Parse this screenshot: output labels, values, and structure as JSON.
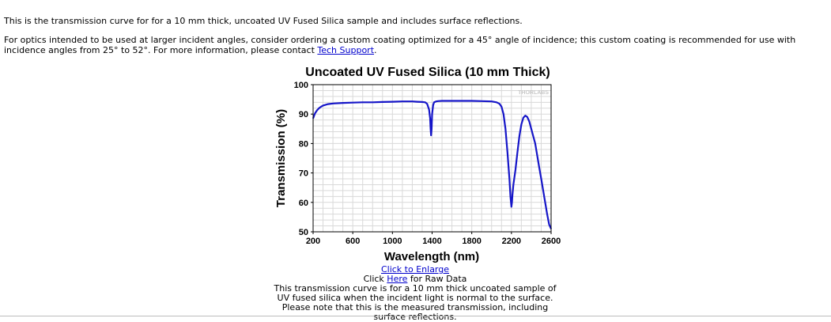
{
  "intro": {
    "line1": "This is the transmission curve for for a 10 mm thick, uncoated UV Fused Silica sample and includes surface reflections.",
    "line2_text": "For optics intended to be used at larger incident angles, consider ordering a custom coating optimized for a 45° angle of incidence; this custom coating is recommended for use with incidence angles from 25° to 52°. For more information, please contact ",
    "line2_link": "Tech Support",
    "line2_end": "."
  },
  "chart_data": {
    "type": "line",
    "title": "Uncoated UV Fused Silica (10 mm Thick)",
    "xlabel": "Wavelength (nm)",
    "ylabel": "Transmission (%)",
    "xlim": [
      200,
      2600
    ],
    "ylim": [
      50,
      100
    ],
    "xticks": [
      200,
      600,
      1000,
      1400,
      1800,
      2200,
      2600
    ],
    "yticks": [
      50,
      60,
      70,
      80,
      90,
      100
    ],
    "grid": true,
    "watermark": "THORLABS",
    "line_color": "#1515c8",
    "series": [
      {
        "x": [
          200,
          210,
          220,
          240,
          260,
          280,
          300,
          350,
          400,
          500,
          600,
          700,
          800,
          900,
          1000,
          1100,
          1200,
          1250,
          1300,
          1330,
          1350,
          1370,
          1380,
          1385,
          1390,
          1395,
          1400,
          1410,
          1420,
          1440,
          1460,
          1500,
          1600,
          1700,
          1800,
          1900,
          2000,
          2050,
          2080,
          2100,
          2120,
          2140,
          2160,
          2180,
          2190,
          2200,
          2205,
          2210,
          2220,
          2240,
          2260,
          2280,
          2300,
          2320,
          2340,
          2360,
          2380,
          2400,
          2420,
          2440,
          2460,
          2480,
          2500,
          2520,
          2540,
          2560,
          2580,
          2600
        ],
        "y": [
          88.5,
          89.5,
          90.3,
          91.3,
          92.0,
          92.5,
          92.9,
          93.4,
          93.6,
          93.8,
          93.9,
          94.0,
          94.0,
          94.1,
          94.2,
          94.3,
          94.3,
          94.2,
          94.1,
          94.0,
          93.5,
          91.5,
          88.5,
          85.0,
          82.8,
          85.0,
          90.0,
          93.0,
          94.0,
          94.3,
          94.4,
          94.5,
          94.5,
          94.5,
          94.5,
          94.4,
          94.3,
          94.0,
          93.5,
          92.5,
          90.0,
          85.0,
          77.0,
          68.0,
          62.0,
          58.5,
          60.0,
          62.5,
          66.0,
          71.0,
          77.0,
          82.5,
          86.5,
          88.8,
          89.5,
          89.0,
          87.5,
          85.0,
          82.5,
          80.0,
          76.0,
          72.0,
          68.0,
          64.0,
          60.0,
          56.0,
          52.5,
          51.0
        ]
      }
    ]
  },
  "captions": {
    "enlarge": "Click to Enlarge",
    "raw_prefix": "Click ",
    "raw_link": "Here",
    "raw_suffix": " for Raw Data",
    "description": "This transmission curve is for a 10 mm thick uncoated sample of UV fused silica when the incident light is normal to the surface. Please note that this is the measured transmission, including surface reflections."
  }
}
